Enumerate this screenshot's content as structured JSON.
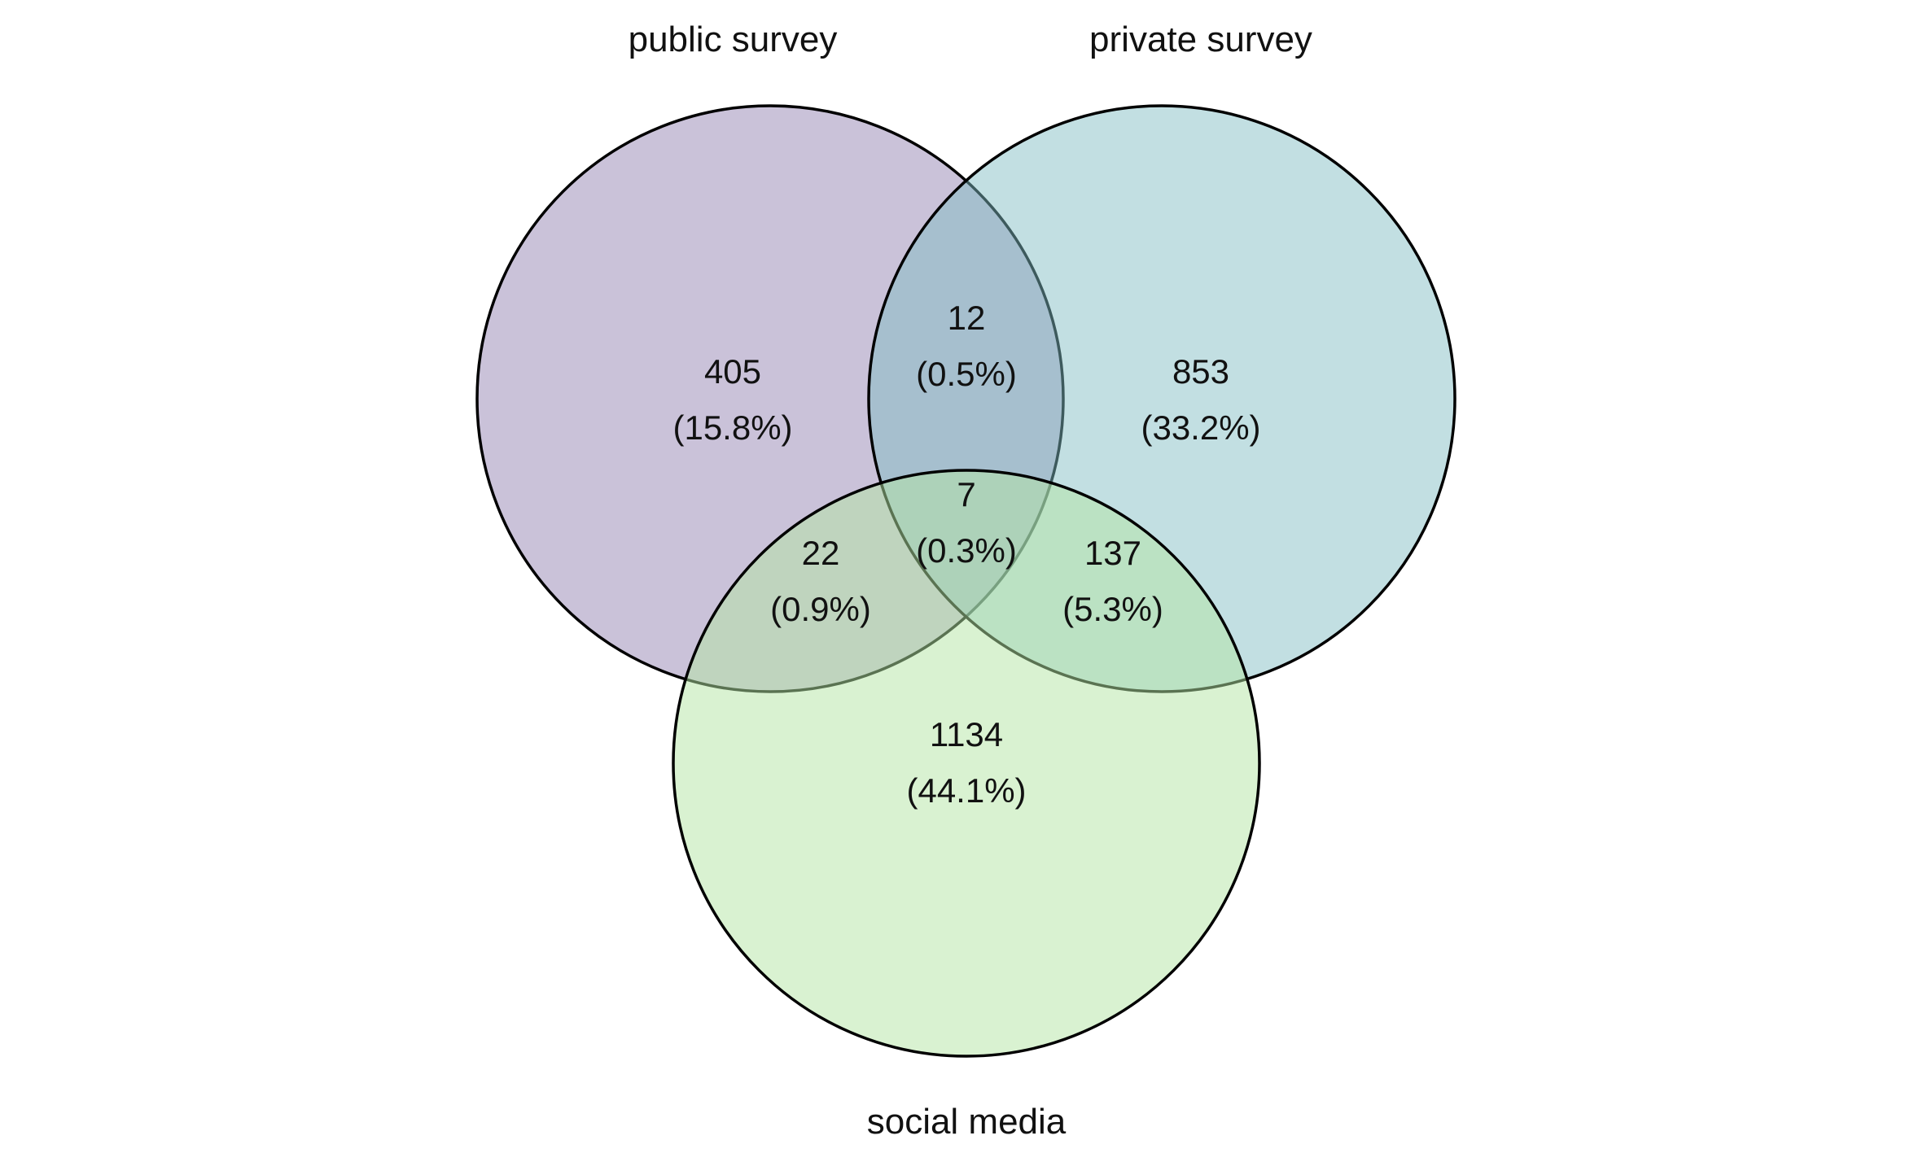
{
  "diagram": {
    "type": "venn",
    "sets": [
      {
        "key": "public",
        "label": "public survey",
        "color": "#9080B0"
      },
      {
        "key": "private",
        "label": "private survey",
        "color": "#80BCC2"
      },
      {
        "key": "social",
        "label": "social media",
        "color": "#B3E5A3"
      }
    ],
    "regions": [
      {
        "key": "public_only",
        "sets": [
          "public"
        ],
        "count": "405",
        "percent": "(15.8%)"
      },
      {
        "key": "public_private",
        "sets": [
          "public",
          "private"
        ],
        "count": "12",
        "percent": "(0.5%)"
      },
      {
        "key": "private_only",
        "sets": [
          "private"
        ],
        "count": "853",
        "percent": "(33.2%)"
      },
      {
        "key": "all_three",
        "sets": [
          "public",
          "private",
          "social"
        ],
        "count": "7",
        "percent": "(0.3%)"
      },
      {
        "key": "public_social",
        "sets": [
          "public",
          "social"
        ],
        "count": "22",
        "percent": "(0.9%)"
      },
      {
        "key": "private_social",
        "sets": [
          "private",
          "social"
        ],
        "count": "137",
        "percent": "(5.3%)"
      },
      {
        "key": "social_only",
        "sets": [
          "social"
        ],
        "count": "1134",
        "percent": "(44.1%)"
      }
    ]
  }
}
